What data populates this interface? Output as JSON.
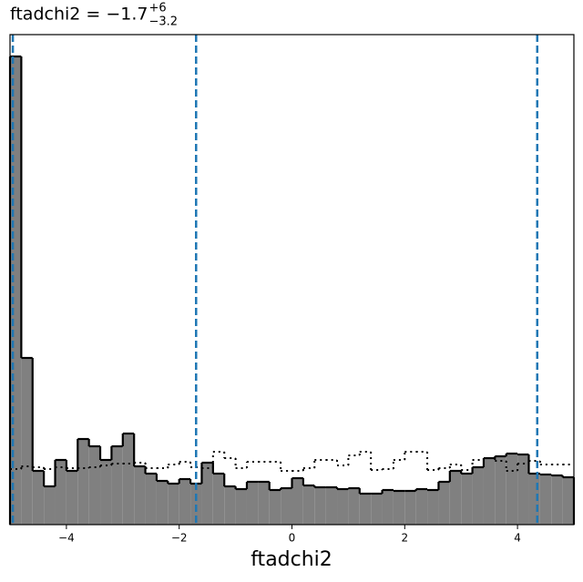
{
  "chart_data": {
    "type": "histogram",
    "title": {
      "text": "ftadchi2 = −1.7",
      "upper": "+6",
      "lower": "−3.2"
    },
    "xlabel": "ftadchi2",
    "bins": [
      -5,
      -4.8,
      -4.6,
      -4.4,
      -4.2,
      -4,
      -3.8,
      -3.6,
      -3.4,
      -3.2,
      -3,
      -2.8,
      -2.6,
      -2.4,
      -2.2,
      -2,
      -1.8,
      -1.6,
      -1.4,
      -1.2,
      -1,
      -0.8,
      -0.6,
      -0.4,
      -0.2,
      0,
      0.2,
      0.4,
      0.6,
      0.8,
      1,
      1.2,
      1.4,
      1.6,
      1.8,
      2,
      2.2,
      2.4,
      2.6,
      2.8,
      3,
      3.2,
      3.4,
      3.6,
      3.8,
      4,
      4.2,
      4.4,
      4.6,
      4.8,
      5
    ],
    "series": [
      {
        "color": "#808080",
        "style": "filled",
        "values": [
          514,
          183,
          59,
          42,
          71,
          59,
          94,
          86,
          71,
          86,
          100,
          64,
          56,
          48,
          45,
          50,
          45,
          68,
          56,
          42,
          39,
          47,
          47,
          38,
          40,
          51,
          43,
          41,
          41,
          39,
          40,
          34,
          34,
          38,
          37,
          37,
          39,
          38,
          47,
          59,
          56,
          63,
          73,
          75,
          78,
          77,
          56,
          55,
          54,
          52
        ]
      },
      {
        "color": "#000000",
        "style": "dotted",
        "values": [
          61,
          64,
          63,
          61,
          63,
          62,
          62,
          63,
          65,
          67,
          67,
          68,
          62,
          62,
          66,
          69,
          63,
          62,
          80,
          73,
          62,
          69,
          69,
          69,
          59,
          59,
          62,
          71,
          71,
          65,
          76,
          80,
          60,
          61,
          71,
          80,
          80,
          60,
          62,
          66,
          60,
          71,
          73,
          70,
          59,
          67,
          70,
          66,
          66,
          66
        ]
      }
    ],
    "vlines": {
      "color": "#1f77b4",
      "values": [
        -4.95,
        -1.7,
        4.35
      ]
    },
    "xlim": [
      -5,
      5
    ],
    "ylim": [
      0,
      538
    ],
    "xticks": [
      {
        "value": -4,
        "label": "−4"
      },
      {
        "value": -2,
        "label": "−2"
      },
      0,
      2,
      4
    ]
  }
}
